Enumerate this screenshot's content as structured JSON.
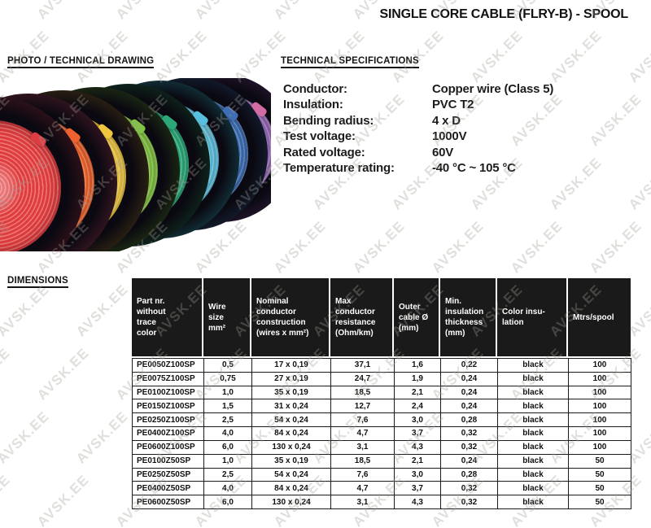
{
  "title": "SINGLE CORE CABLE (FLRY-B) - SPOOL",
  "watermark": {
    "text": "AVSK.EE"
  },
  "sections": {
    "photo_heading": "PHOTO / TECHNICAL DRAWING",
    "specs_heading": "TECHNICAL SPECIFICATIONS",
    "dimensions_heading": "DIMENSIONS"
  },
  "specs": [
    {
      "label": "Conductor:",
      "value": "Copper wire (Class 5)"
    },
    {
      "label": "Insulation:",
      "value": "PVC T2"
    },
    {
      "label": "Bending radius:",
      "value": "4 x D"
    },
    {
      "label": "Test voltage:",
      "value": "1000V"
    },
    {
      "label": "Rated voltage:",
      "value": "60V"
    },
    {
      "label": "Temperature rating:",
      "value": "-40 °C ~ 105 °C"
    }
  ],
  "photo": {
    "description": "row of cable spools with colored wire",
    "spools": [
      {
        "name": "red",
        "color": "#dd3c42",
        "light": "#f0776e",
        "flange": "#2f1119"
      },
      {
        "name": "orange",
        "color": "#f0602e",
        "light": "#f88f5a",
        "flange": "#331520"
      },
      {
        "name": "yellow",
        "color": "#f0c63e",
        "light": "#f7dd7a",
        "flange": "#2b2113"
      },
      {
        "name": "yellow-green",
        "color": "#7fc342",
        "light": "#a8d96e",
        "flange": "#1b2913"
      },
      {
        "name": "green",
        "color": "#2ca878",
        "light": "#5cc9a0",
        "flange": "#0e241c"
      },
      {
        "name": "cyan",
        "color": "#58bfdf",
        "light": "#8fd8ec",
        "flange": "#113038"
      },
      {
        "name": "blue",
        "color": "#3f6eb5",
        "light": "#6e97cf",
        "flange": "#121b2c"
      },
      {
        "name": "purple",
        "color": "#9468b4",
        "light": "#b891d2",
        "flange": "#1f1428",
        "tab": "#d36ba4"
      }
    ]
  },
  "table": {
    "header_bg": "#1a1a1a",
    "columns": [
      {
        "lines": [
          "Part nr.",
          "without",
          "trace",
          "color"
        ]
      },
      {
        "lines": [
          "Wire",
          "size",
          "mm²"
        ]
      },
      {
        "lines": [
          "Nominal",
          "conductor",
          "construction",
          "(wires x mm²)"
        ]
      },
      {
        "lines": [
          "Max",
          "conductor",
          "resistance",
          "(Ohm/km)"
        ]
      },
      {
        "lines": [
          "Outer",
          "cable Ø",
          "(mm)"
        ]
      },
      {
        "lines": [
          "Min.",
          "insulation",
          "thickness",
          "(mm)"
        ]
      },
      {
        "lines": [
          "Color insu-",
          "lation"
        ]
      },
      {
        "lines": [
          "Mtrs/spool"
        ]
      }
    ],
    "rows": [
      [
        "PE0050Z100SP",
        "0,5",
        "17 x 0,19",
        "37,1",
        "1,6",
        "0,22",
        "black",
        "100"
      ],
      [
        "PE0075Z100SP",
        "0,75",
        "27 x 0,19",
        "24,7",
        "1,9",
        "0,24",
        "black",
        "100"
      ],
      [
        "PE0100Z100SP",
        "1,0",
        "35 x 0,19",
        "18,5",
        "2,1",
        "0,24",
        "black",
        "100"
      ],
      [
        "PE0150Z100SP",
        "1,5",
        "31 x 0,24",
        "12,7",
        "2,4",
        "0,24",
        "black",
        "100"
      ],
      [
        "PE0250Z100SP",
        "2,5",
        "54 x 0,24",
        "7,6",
        "3,0",
        "0,28",
        "black",
        "100"
      ],
      [
        "PE0400Z100SP",
        "4,0",
        "84 x 0,24",
        "4,7",
        "3,7",
        "0,32",
        "black",
        "100"
      ],
      [
        "PE0600Z100SP",
        "6,0",
        "130 x 0,24",
        "3,1",
        "4,3",
        "0,32",
        "black",
        "100"
      ],
      [
        "PE0100Z50SP",
        "1,0",
        "35 x 0,19",
        "18,5",
        "2,1",
        "0,24",
        "black",
        "50"
      ],
      [
        "PE0250Z50SP",
        "2,5",
        "54 x 0,24",
        "7,6",
        "3,0",
        "0,28",
        "black",
        "50"
      ],
      [
        "PE0400Z50SP",
        "4,0",
        "84 x 0,24",
        "4,7",
        "3,7",
        "0,32",
        "black",
        "50"
      ],
      [
        "PE0600Z50SP",
        "6,0",
        "130 x 0,24",
        "3,1",
        "4,3",
        "0,32",
        "black",
        "50"
      ]
    ]
  }
}
